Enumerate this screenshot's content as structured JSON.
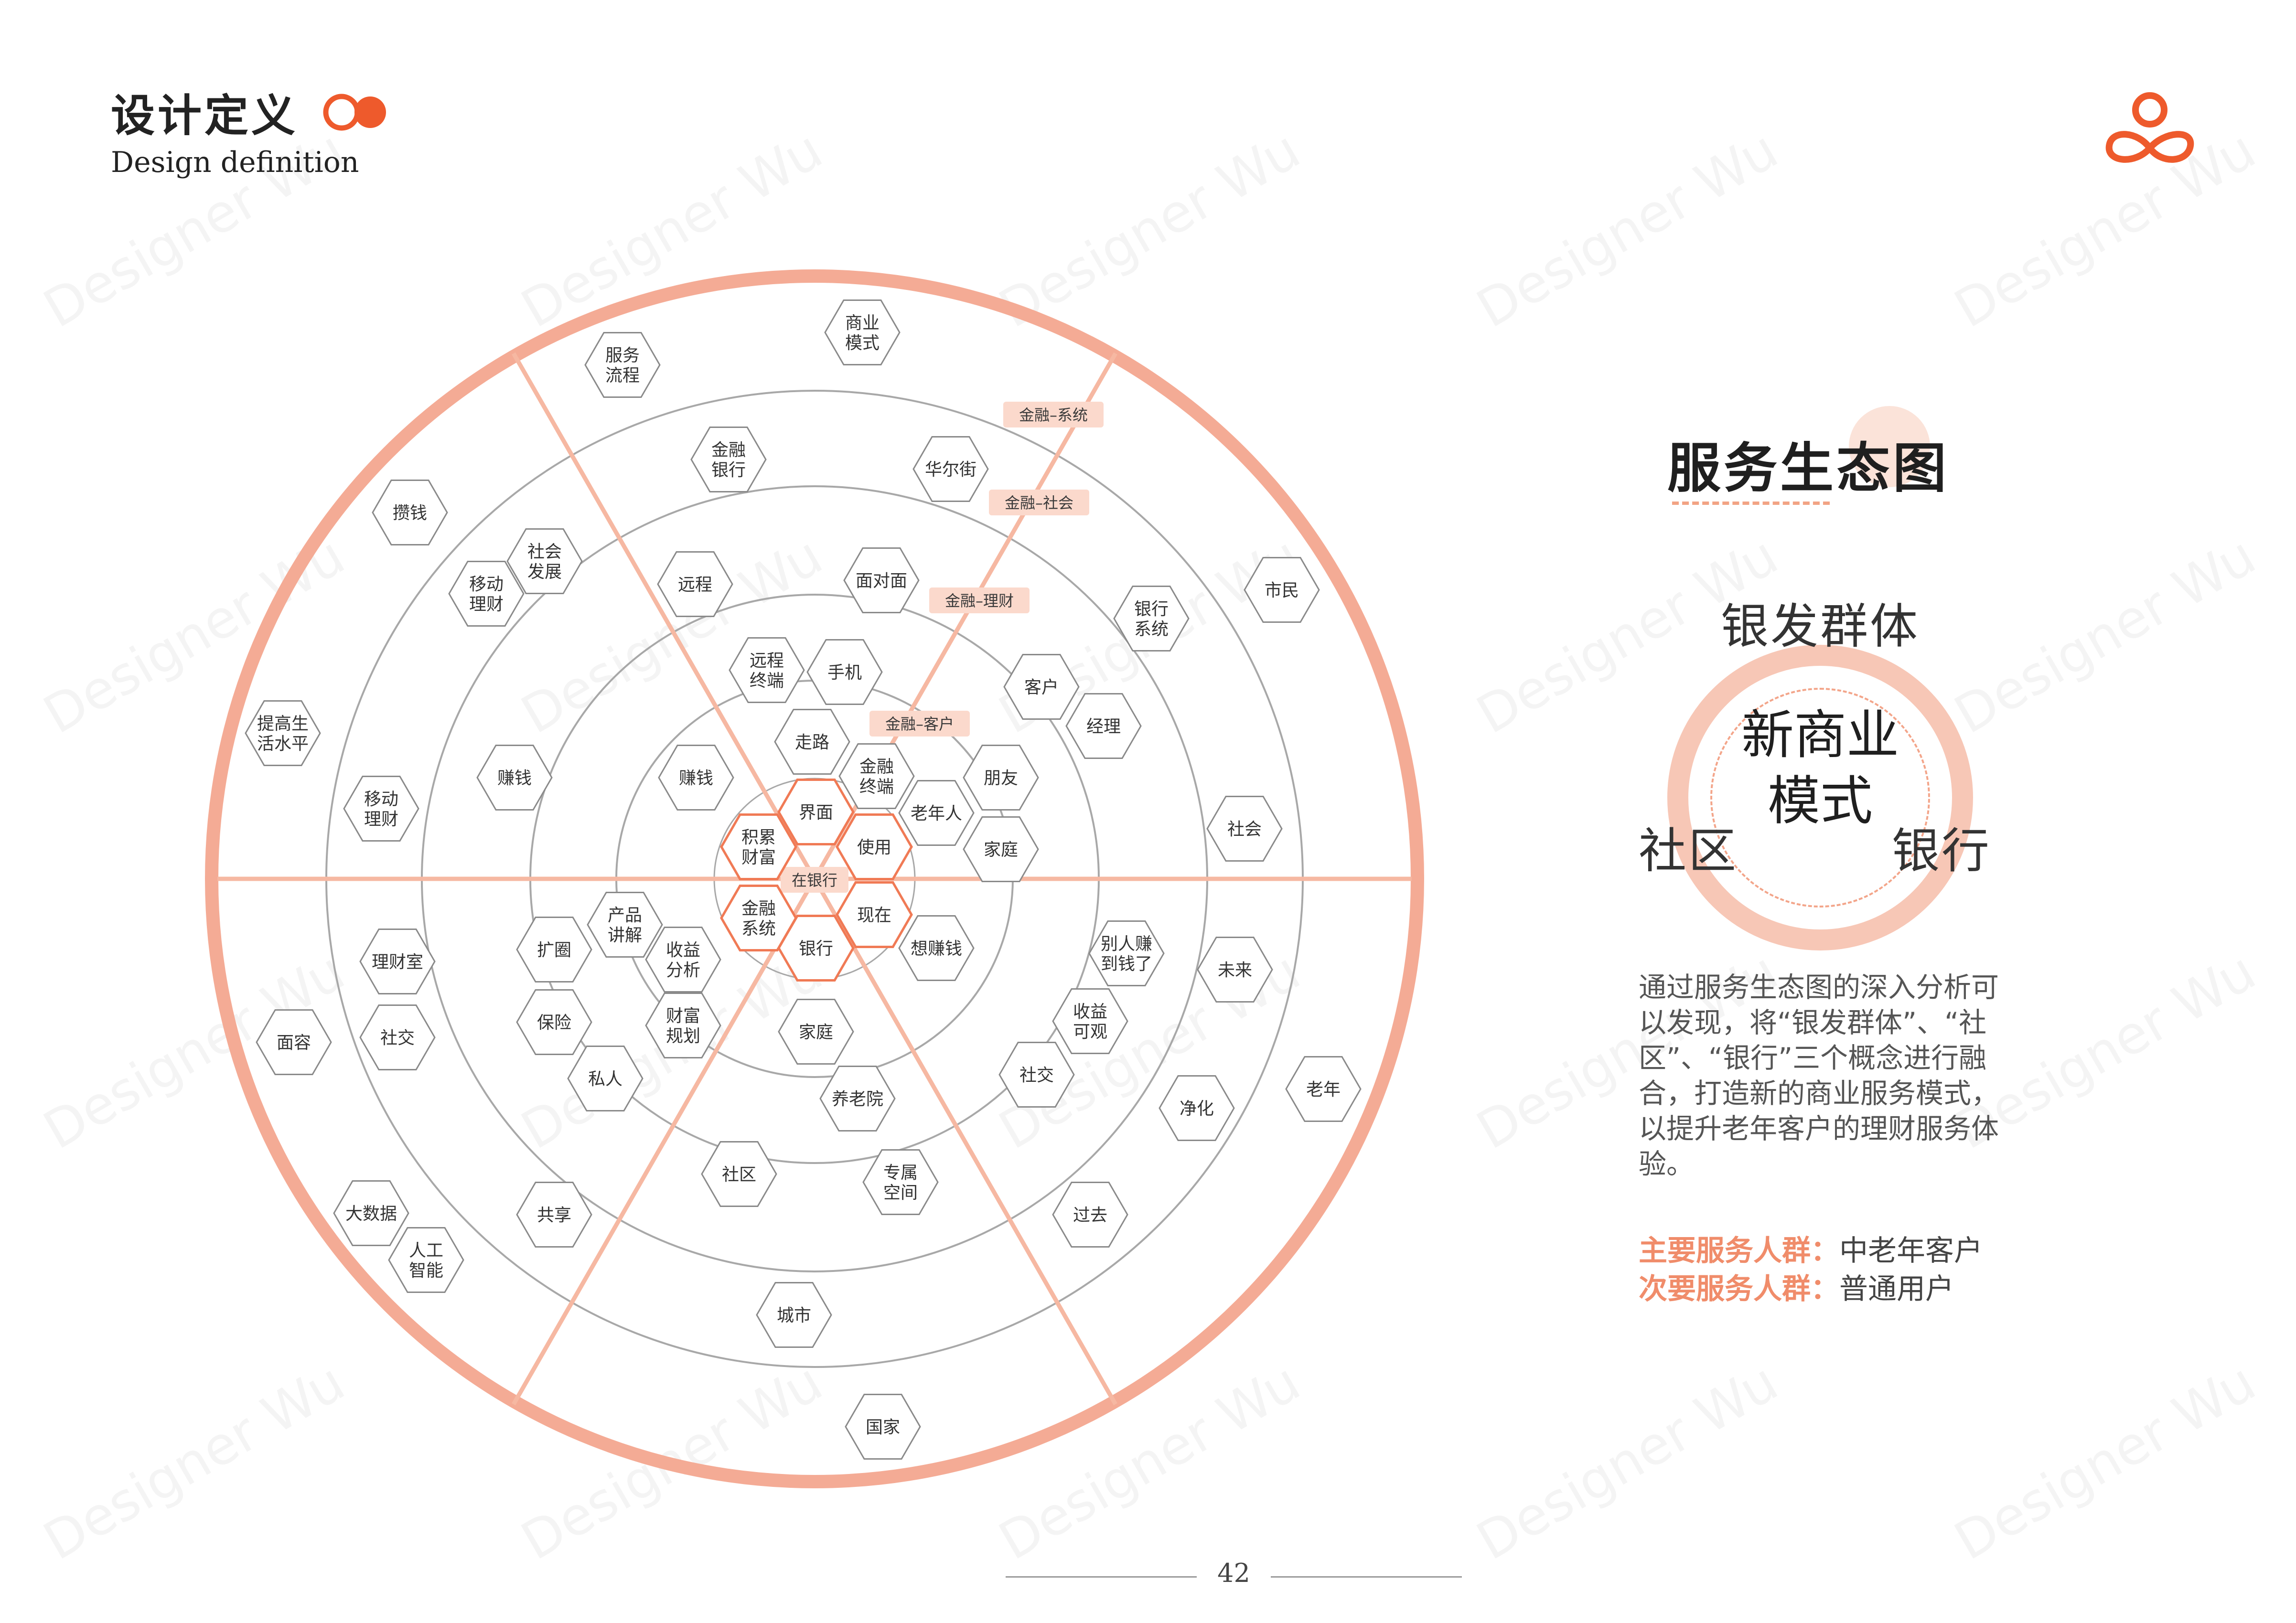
{
  "header": {
    "title": "设计定义",
    "subtitle": "Design definition"
  },
  "colors": {
    "accent": "#ee5a2c",
    "ring_outer": "#f4ab95",
    "spoke": "#f6b8a2",
    "circle_gray": "#a8a8a8",
    "tag_bg": "#fbd9cc",
    "highlight_hex": "#f07a55"
  },
  "diagram": {
    "tags": [
      {
        "id": "t1",
        "text": "金融–系统"
      },
      {
        "id": "t2",
        "text": "金融–社会"
      },
      {
        "id": "t3",
        "text": "金融–理财"
      },
      {
        "id": "t4",
        "text": "金融–客户"
      },
      {
        "id": "t5",
        "text": "在银行"
      }
    ],
    "nodes": [
      {
        "id": "n1",
        "lines": [
          "商业",
          "模式"
        ]
      },
      {
        "id": "n2",
        "lines": [
          "服务",
          "流程"
        ]
      },
      {
        "id": "n3",
        "lines": [
          "金融",
          "银行"
        ]
      },
      {
        "id": "n4",
        "lines": [
          "华尔街"
        ]
      },
      {
        "id": "n5",
        "lines": [
          "攒钱"
        ]
      },
      {
        "id": "n6",
        "lines": [
          "社会",
          "发展"
        ]
      },
      {
        "id": "n7",
        "lines": [
          "移动",
          "理财"
        ]
      },
      {
        "id": "n8",
        "lines": [
          "远程"
        ]
      },
      {
        "id": "n9",
        "lines": [
          "面对面"
        ]
      },
      {
        "id": "n10",
        "lines": [
          "银行",
          "系统"
        ]
      },
      {
        "id": "n11",
        "lines": [
          "市民"
        ]
      },
      {
        "id": "n12",
        "lines": [
          "远程",
          "终端"
        ]
      },
      {
        "id": "n13",
        "lines": [
          "手机"
        ]
      },
      {
        "id": "n14",
        "lines": [
          "客户"
        ]
      },
      {
        "id": "n15",
        "lines": [
          "经理"
        ]
      },
      {
        "id": "n16",
        "lines": [
          "提高生",
          "活水平"
        ]
      },
      {
        "id": "n17",
        "lines": [
          "走路"
        ]
      },
      {
        "id": "n18",
        "lines": [
          "金融",
          "终端"
        ]
      },
      {
        "id": "n19",
        "lines": [
          "朋友"
        ]
      },
      {
        "id": "n20",
        "lines": [
          "赚钱"
        ]
      },
      {
        "id": "n21",
        "lines": [
          "赚钱"
        ]
      },
      {
        "id": "n22",
        "lines": [
          "界面"
        ]
      },
      {
        "id": "n23",
        "lines": [
          "老年人"
        ]
      },
      {
        "id": "n24",
        "lines": [
          "社会"
        ]
      },
      {
        "id": "n25",
        "lines": [
          "移动",
          "理财"
        ]
      },
      {
        "id": "n26",
        "lines": [
          "积累",
          "财富"
        ]
      },
      {
        "id": "n27",
        "lines": [
          "使用"
        ]
      },
      {
        "id": "n28",
        "lines": [
          "家庭"
        ]
      },
      {
        "id": "n29",
        "lines": [
          "金融",
          "系统"
        ]
      },
      {
        "id": "n30",
        "lines": [
          "现在"
        ]
      },
      {
        "id": "n31",
        "lines": [
          "银行"
        ]
      },
      {
        "id": "n32",
        "lines": [
          "想赚钱"
        ]
      },
      {
        "id": "n33",
        "lines": [
          "产品",
          "讲解"
        ]
      },
      {
        "id": "n34",
        "lines": [
          "扩圈"
        ]
      },
      {
        "id": "n35",
        "lines": [
          "收益",
          "分析"
        ]
      },
      {
        "id": "n36",
        "lines": [
          "别人赚",
          "到钱了"
        ]
      },
      {
        "id": "n37",
        "lines": [
          "未来"
        ]
      },
      {
        "id": "n38",
        "lines": [
          "理财室"
        ]
      },
      {
        "id": "n39",
        "lines": [
          "保险"
        ]
      },
      {
        "id": "n40",
        "lines": [
          "财富",
          "规划"
        ]
      },
      {
        "id": "n41",
        "lines": [
          "收益",
          "可观"
        ]
      },
      {
        "id": "n42",
        "lines": [
          "面容"
        ]
      },
      {
        "id": "n43",
        "lines": [
          "社交"
        ]
      },
      {
        "id": "n44",
        "lines": [
          "家庭"
        ]
      },
      {
        "id": "n45",
        "lines": [
          "老年"
        ]
      },
      {
        "id": "n46",
        "lines": [
          "私人"
        ]
      },
      {
        "id": "n47",
        "lines": [
          "养老院"
        ]
      },
      {
        "id": "n48",
        "lines": [
          "社交"
        ]
      },
      {
        "id": "n49",
        "lines": [
          "净化"
        ]
      },
      {
        "id": "n50",
        "lines": [
          "社区"
        ]
      },
      {
        "id": "n51",
        "lines": [
          "专属",
          "空间"
        ]
      },
      {
        "id": "n52",
        "lines": [
          "大数据"
        ]
      },
      {
        "id": "n53",
        "lines": [
          "共享"
        ]
      },
      {
        "id": "n54",
        "lines": [
          "过去"
        ]
      },
      {
        "id": "n55",
        "lines": [
          "人工",
          "智能"
        ]
      },
      {
        "id": "n56",
        "lines": [
          "城市"
        ]
      },
      {
        "id": "n57",
        "lines": [
          "国家"
        ]
      }
    ]
  },
  "side": {
    "title": "服务生态图",
    "concept": {
      "top": "银发群体",
      "center_line1": "新商业",
      "center_line2": "模式",
      "left": "社区",
      "right": "银行"
    },
    "description": "通过服务生态图的深入分析可以发现，将“银发群体”、“社区”、“银行”三个概念进行融合，打造新的商业服务模式，以提升老年客户的理财服务体验。",
    "primary_label": "主要服务人群：",
    "primary_value": "中老年客户",
    "secondary_label": "次要服务人群：",
    "secondary_value": "普通用户"
  },
  "footer": {
    "page_number": "42"
  },
  "watermark": "Designer Wu"
}
